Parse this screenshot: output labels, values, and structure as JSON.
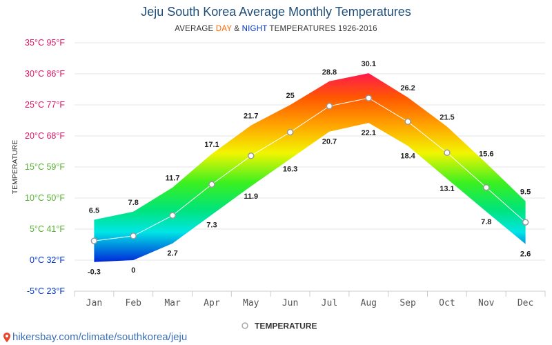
{
  "title": "Jeju South Korea Average Monthly Temperatures",
  "subtitle": {
    "prefix": "AVERAGE ",
    "day": "DAY",
    "mid": " & ",
    "night": "NIGHT",
    "suffix": " TEMPERATURES 1926-2016"
  },
  "source": "hikersbay.com/climate/southkorea/jeju",
  "colors": {
    "title": "#1f4e79",
    "day": "#ff6600",
    "night": "#0033cc",
    "grid": "#e6e6e6",
    "avg_line": "#ffffff"
  },
  "chart_data": {
    "type": "area",
    "title": "Jeju South Korea Average Monthly Temperatures",
    "ylabel": "TEMPERATURE",
    "ylim": [
      -5,
      35
    ],
    "yticks": [
      {
        "value": 35,
        "label": "35°C 95°F",
        "color": "#e0115f"
      },
      {
        "value": 30,
        "label": "30°C 86°F",
        "color": "#e0115f"
      },
      {
        "value": 25,
        "label": "25°C 77°F",
        "color": "#e0115f"
      },
      {
        "value": 20,
        "label": "20°C 68°F",
        "color": "#e0115f"
      },
      {
        "value": 15,
        "label": "15°C 59°F",
        "color": "#55b030"
      },
      {
        "value": 10,
        "label": "10°C 50°F",
        "color": "#55b030"
      },
      {
        "value": 5,
        "label": "5°C 41°F",
        "color": "#55b030"
      },
      {
        "value": 0,
        "label": "0°C 32°F",
        "color": "#0033cc"
      },
      {
        "value": -5,
        "label": "-5°C 23°F",
        "color": "#0033cc"
      }
    ],
    "categories": [
      "Jan",
      "Feb",
      "Mar",
      "Apr",
      "May",
      "Jun",
      "Jul",
      "Aug",
      "Sep",
      "Oct",
      "Nov",
      "Dec"
    ],
    "series": [
      {
        "name": "DAY",
        "values": [
          6.5,
          7.8,
          11.7,
          17.1,
          21.7,
          25,
          28.8,
          30.1,
          26.2,
          21.5,
          15.6,
          9.5
        ]
      },
      {
        "name": "NIGHT",
        "values": [
          -0.3,
          0,
          2.7,
          7.3,
          11.9,
          16.3,
          20.7,
          22.1,
          18.4,
          13.1,
          7.8,
          2.6
        ]
      },
      {
        "name": "TEMPERATURE",
        "values": [
          3.1,
          3.9,
          7.2,
          12.2,
          16.8,
          20.6,
          24.8,
          26.1,
          22.3,
          17.3,
          11.7,
          6.1
        ]
      }
    ],
    "legend": {
      "label": "TEMPERATURE",
      "position": "bottom"
    },
    "grid": true
  }
}
